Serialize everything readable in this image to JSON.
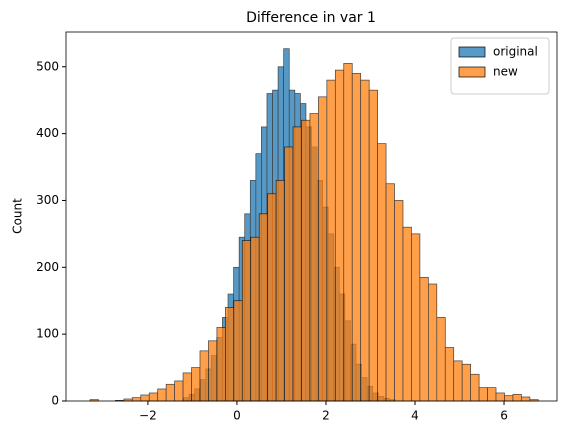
{
  "chart_data": {
    "type": "histogram",
    "title": "Difference in var 1",
    "ylabel": "Count",
    "xlim": [
      -3.84,
      7.19
    ],
    "ylim": [
      0,
      552
    ],
    "xticks": [
      {
        "value": -2,
        "label": "−2"
      },
      0,
      2,
      4,
      6
    ],
    "yticks": [
      0,
      100,
      200,
      300,
      400,
      500
    ],
    "legend": "upper right",
    "series": [
      {
        "name": "original",
        "color": "#1f77b4",
        "bins": [
          -1.2,
          -1.075,
          -0.95,
          -0.825,
          -0.7,
          -0.575,
          -0.45,
          -0.325,
          -0.2,
          -0.075,
          0.05,
          0.175,
          0.3,
          0.425,
          0.55,
          0.675,
          0.8,
          0.925,
          1.05,
          1.175,
          1.3,
          1.425,
          1.55,
          1.675,
          1.8,
          1.925,
          2.05,
          2.175,
          2.3,
          2.425,
          2.55,
          2.675,
          2.8,
          2.925,
          3.05,
          3.175,
          3.3,
          3.425,
          3.55
        ],
        "values": [
          5,
          10,
          18,
          32,
          48,
          68,
          95,
          125,
          160,
          200,
          245,
          280,
          330,
          370,
          410,
          460,
          465,
          500,
          527,
          465,
          460,
          445,
          410,
          380,
          330,
          290,
          250,
          200,
          160,
          120,
          85,
          55,
          35,
          22,
          12,
          7,
          4,
          2
        ]
      },
      {
        "name": "new",
        "color": "#ff7f0e",
        "bins": [
          -3.3,
          -3.11,
          -2.92,
          -2.73,
          -2.54,
          -2.35,
          -2.16,
          -1.97,
          -1.78,
          -1.59,
          -1.4,
          -1.21,
          -1.02,
          -0.83,
          -0.64,
          -0.45,
          -0.26,
          -0.07,
          0.12,
          0.31,
          0.5,
          0.69,
          0.88,
          1.07,
          1.26,
          1.45,
          1.64,
          1.83,
          2.02,
          2.21,
          2.4,
          2.59,
          2.78,
          2.97,
          3.16,
          3.35,
          3.54,
          3.73,
          3.92,
          4.11,
          4.3,
          4.49,
          4.68,
          4.87,
          5.06,
          5.25,
          5.44,
          5.63,
          5.82,
          6.01,
          6.2,
          6.39,
          6.58,
          6.77
        ],
        "values": [
          2,
          0,
          0,
          1,
          3,
          5,
          9,
          12,
          18,
          25,
          30,
          42,
          50,
          75,
          90,
          110,
          140,
          150,
          240,
          245,
          280,
          310,
          330,
          380,
          410,
          420,
          430,
          455,
          480,
          495,
          505,
          490,
          480,
          465,
          385,
          325,
          300,
          260,
          250,
          185,
          175,
          125,
          80,
          60,
          55,
          40,
          20,
          20,
          12,
          8,
          10,
          6,
          2
        ]
      }
    ]
  }
}
